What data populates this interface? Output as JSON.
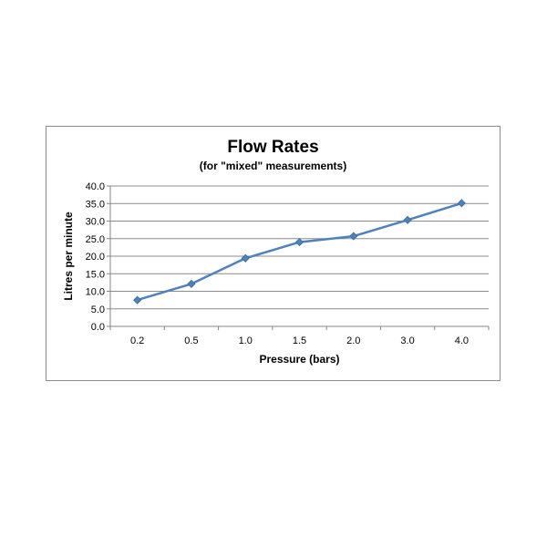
{
  "chart_data": {
    "type": "line",
    "title": "Flow Rates",
    "subtitle": "(for \"mixed\" measurements)",
    "xlabel": "Pressure (bars)",
    "ylabel": "Litres per minute",
    "categories": [
      "0.2",
      "0.5",
      "1.0",
      "1.5",
      "2.0",
      "3.0",
      "4.0"
    ],
    "series": [
      {
        "values": [
          7.5,
          12.1,
          19.4,
          24.0,
          25.7,
          30.3,
          35.1
        ]
      }
    ],
    "ylim": [
      0,
      40
    ],
    "yticks": [
      "0.0",
      "5.0",
      "10.0",
      "15.0",
      "20.0",
      "25.0",
      "30.0",
      "35.0",
      "40.0"
    ],
    "grid": true,
    "legend": "none",
    "colors": {
      "line": "#4f81bd",
      "marker": "#4f81bd",
      "grid": "#8c8c8c",
      "axis": "#868686"
    }
  }
}
